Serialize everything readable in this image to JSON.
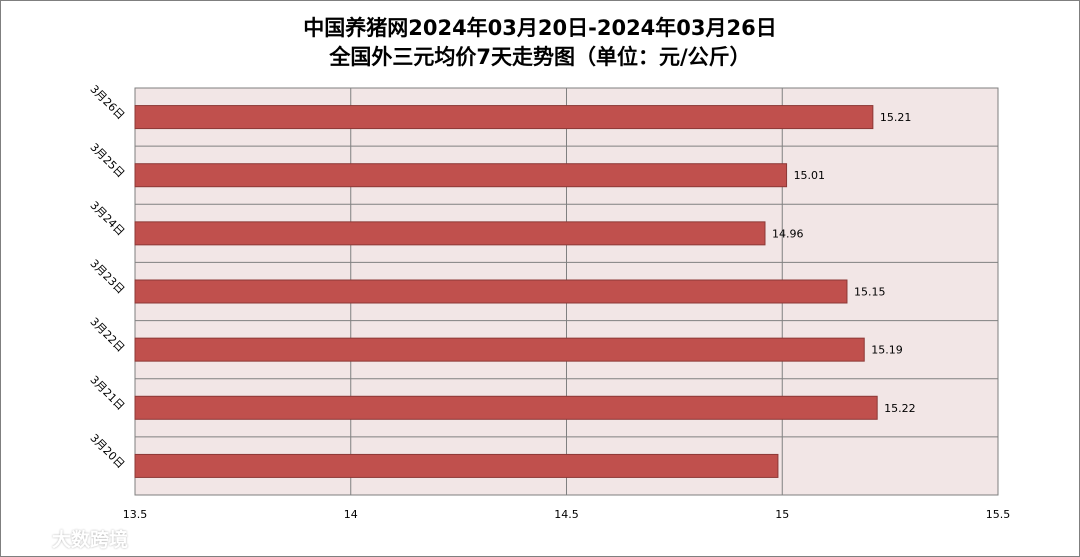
{
  "chart_data": {
    "type": "bar",
    "orientation": "horizontal",
    "title_line1": "中国养猪网2024年03月20日-2024年03月26日",
    "title_line2": "全国外三元均价7天走势图（单位：元/公斤）",
    "categories": [
      "3月26日",
      "3月25日",
      "3月24日",
      "3月23日",
      "3月22日",
      "3月21日",
      "3月20日"
    ],
    "values": [
      15.21,
      15.01,
      14.96,
      15.15,
      15.19,
      15.22,
      14.99
    ],
    "data_labels": [
      "15.21",
      "15.01",
      "14.96",
      "15.15",
      "15.19",
      "15.22",
      ""
    ],
    "xlim": [
      13.5,
      15.5
    ],
    "x_ticks": [
      "13.5",
      "14",
      "14.5",
      "15",
      "15.5"
    ],
    "x_tick_values": [
      13.5,
      14,
      14.5,
      15,
      15.5
    ],
    "grid": true,
    "legend": "none",
    "colors": {
      "bar_fill": "#c0504d",
      "bar_stroke": "#8c3836",
      "plot_background": "#f2e6e6",
      "grid": "#808080"
    }
  },
  "watermark": {
    "logo_icon": "bird-logo-icon",
    "text": "大数跨境"
  }
}
